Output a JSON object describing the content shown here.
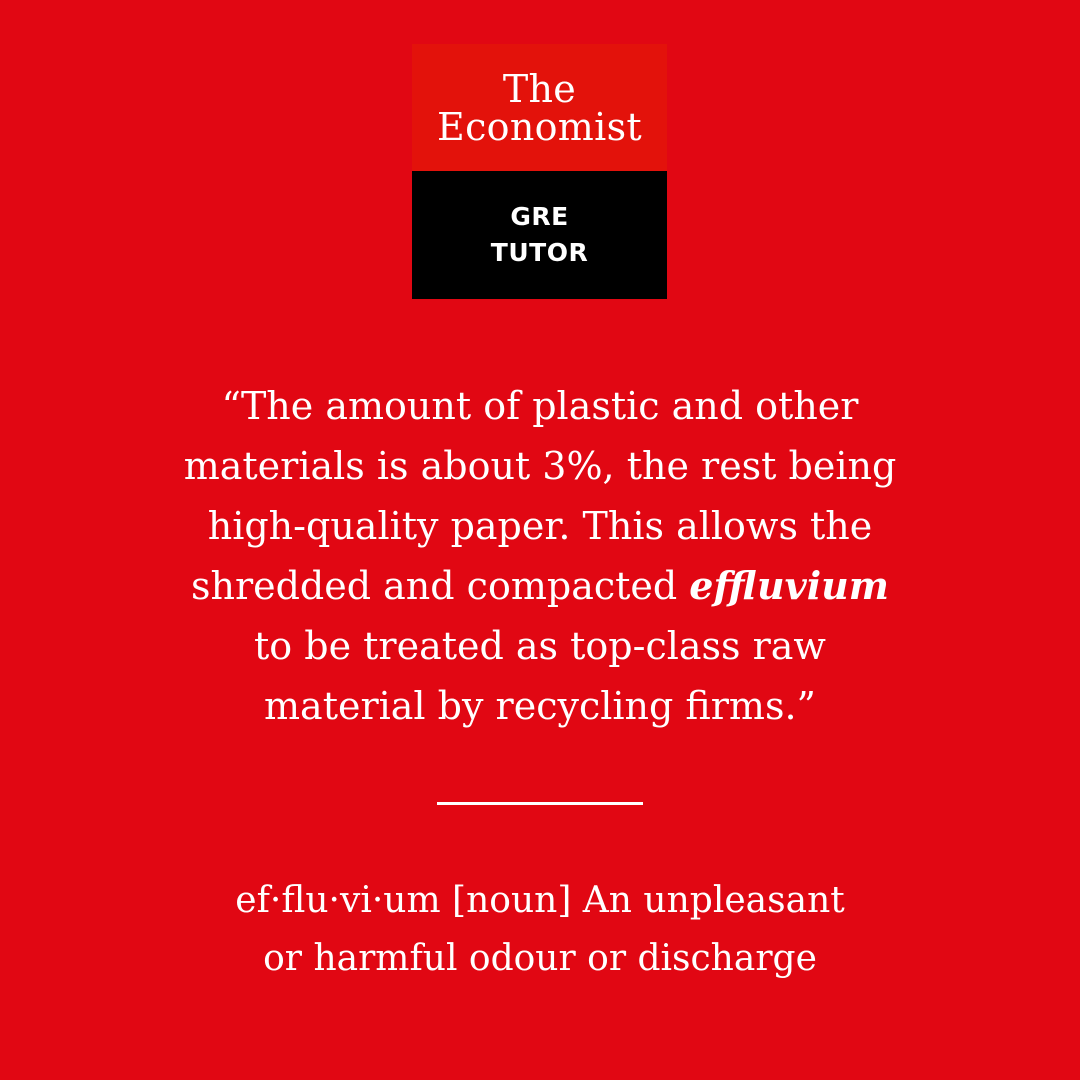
{
  "logo": {
    "brand_line1": "The",
    "brand_line2": "Economist",
    "product_line1": "GRE",
    "product_line2": "TUTOR"
  },
  "quote": {
    "line1": "“The amount of plastic and other",
    "line2": "materials is about 3%, the rest being",
    "line3": "high-quality paper. This allows the",
    "line4_pre": "shredded and compacted ",
    "line4_word": "effluvium",
    "line5": "to be treated as top-class raw",
    "line6": "material by recycling firms.”"
  },
  "definition": {
    "line1": "ef·flu·vi·um [noun] An unpleasant",
    "line2": "or harmful odour or discharge"
  },
  "colors": {
    "background": "#e10713",
    "logo_red": "#e3120b",
    "logo_black": "#000000",
    "text": "#ffffff"
  }
}
